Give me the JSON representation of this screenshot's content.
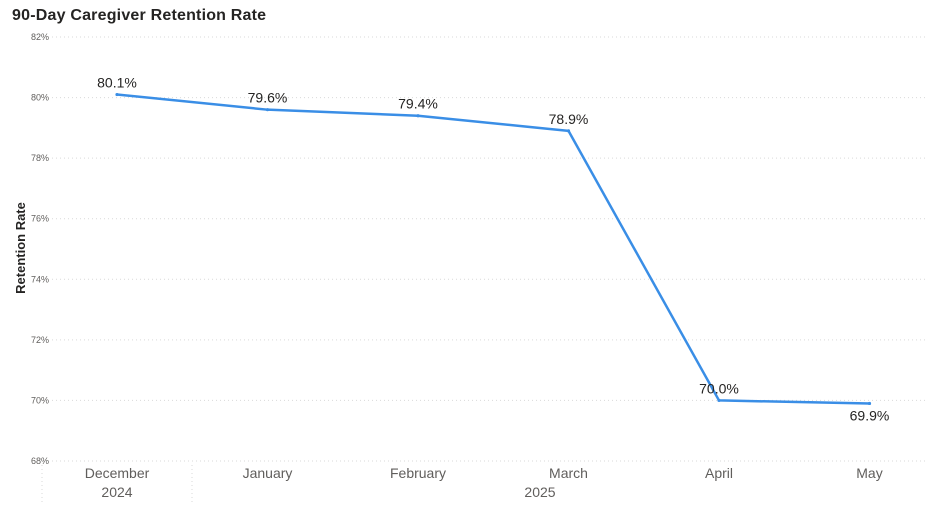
{
  "chart_data": {
    "type": "line",
    "title": "90-Day Caregiver Retention Rate",
    "ylabel": "Retention Rate",
    "xlabel": "",
    "ylim": [
      68,
      82
    ],
    "y_ticks": [
      "68%",
      "70%",
      "72%",
      "74%",
      "76%",
      "78%",
      "80%",
      "82%"
    ],
    "y_tick_values": [
      68,
      70,
      72,
      74,
      76,
      78,
      80,
      82
    ],
    "categories": [
      "December",
      "January",
      "February",
      "March",
      "April",
      "May"
    ],
    "year_groups": [
      {
        "label": "2024",
        "categories": [
          "December"
        ]
      },
      {
        "label": "2025",
        "categories": [
          "January",
          "February",
          "March",
          "April",
          "May"
        ]
      }
    ],
    "series": [
      {
        "values": [
          80.1,
          79.6,
          79.4,
          78.9,
          70.0,
          69.9
        ],
        "labels": [
          "80.1%",
          "79.6%",
          "79.4%",
          "78.9%",
          "70.0%",
          "69.9%"
        ],
        "color": "#3a8ee6"
      }
    ],
    "grid": true,
    "legend": "none"
  }
}
